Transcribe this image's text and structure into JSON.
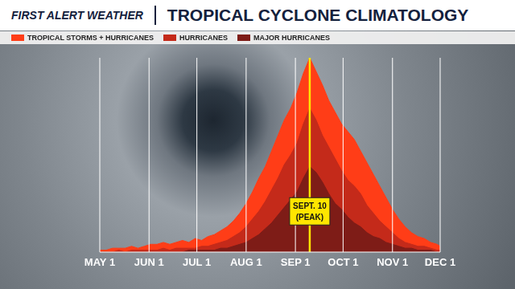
{
  "chart_data": {
    "type": "area",
    "brand": "FIRST ALERT WEATHER",
    "title": "TROPICAL CYCLONE CLIMATOLOGY",
    "legend": "top left",
    "grid": true,
    "stacked": false,
    "tick_labels": "x",
    "xlim": [
      0,
      214
    ],
    "xticks": [
      {
        "value": 0,
        "label": "MAY 1"
      },
      {
        "value": 31,
        "label": "JUN 1"
      },
      {
        "value": 61,
        "label": "JUL 1"
      },
      {
        "value": 92,
        "label": "AUG 1"
      },
      {
        "value": 123,
        "label": "SEP 1"
      },
      {
        "value": 153,
        "label": "OCT 1"
      },
      {
        "value": 184,
        "label": "NOV 1"
      },
      {
        "value": 214,
        "label": "DEC 1"
      }
    ],
    "ylim": [
      0,
      100
    ],
    "x": [
      0,
      4,
      8,
      12,
      16,
      20,
      24,
      28,
      32,
      36,
      40,
      44,
      48,
      52,
      56,
      60,
      64,
      68,
      72,
      76,
      80,
      84,
      88,
      92,
      96,
      100,
      104,
      108,
      112,
      116,
      120,
      124,
      128,
      132,
      136,
      140,
      144,
      148,
      152,
      156,
      160,
      164,
      168,
      172,
      176,
      180,
      184,
      188,
      192,
      196,
      200,
      204,
      208,
      212,
      214
    ],
    "series": [
      {
        "name": "TROPICAL STORMS + HURRICANES",
        "color": "#ff3d17",
        "values": [
          1,
          1,
          2,
          2,
          2,
          3,
          2,
          3,
          4,
          4,
          5,
          4,
          5,
          6,
          5,
          7,
          6,
          8,
          9,
          11,
          13,
          16,
          20,
          25,
          31,
          38,
          44,
          52,
          60,
          68,
          74,
          82,
          92,
          100,
          93,
          86,
          78,
          72,
          66,
          62,
          58,
          52,
          46,
          40,
          34,
          28,
          22,
          17,
          13,
          10,
          8,
          7,
          5,
          4,
          3
        ]
      },
      {
        "name": "HURRICANES",
        "color": "#c42a1a",
        "values": [
          0,
          0,
          0,
          1,
          0,
          1,
          1,
          1,
          1,
          1,
          2,
          1,
          2,
          2,
          2,
          2,
          3,
          3,
          4,
          5,
          6,
          8,
          10,
          13,
          17,
          21,
          26,
          32,
          38,
          45,
          50,
          56,
          66,
          74,
          68,
          60,
          54,
          48,
          42,
          37,
          34,
          30,
          24,
          20,
          16,
          13,
          10,
          7,
          5,
          4,
          3,
          3,
          2,
          1,
          1
        ]
      },
      {
        "name": "MAJOR HURRICANES",
        "color": "#7e1c17",
        "values": [
          0,
          0,
          0,
          0,
          0,
          0,
          0,
          0,
          0,
          0,
          0,
          0,
          0,
          0,
          1,
          1,
          1,
          1,
          1,
          2,
          2,
          3,
          4,
          5,
          7,
          9,
          12,
          15,
          19,
          23,
          27,
          31,
          38,
          44,
          41,
          36,
          30,
          25,
          22,
          18,
          15,
          13,
          10,
          8,
          7,
          5,
          4,
          3,
          2,
          2,
          1,
          1,
          1,
          0,
          0
        ]
      }
    ],
    "annotations": [
      {
        "x": 132,
        "label": "SEPT. 10",
        "sublabel": "(PEAK)",
        "color": "#ffe600"
      }
    ]
  }
}
